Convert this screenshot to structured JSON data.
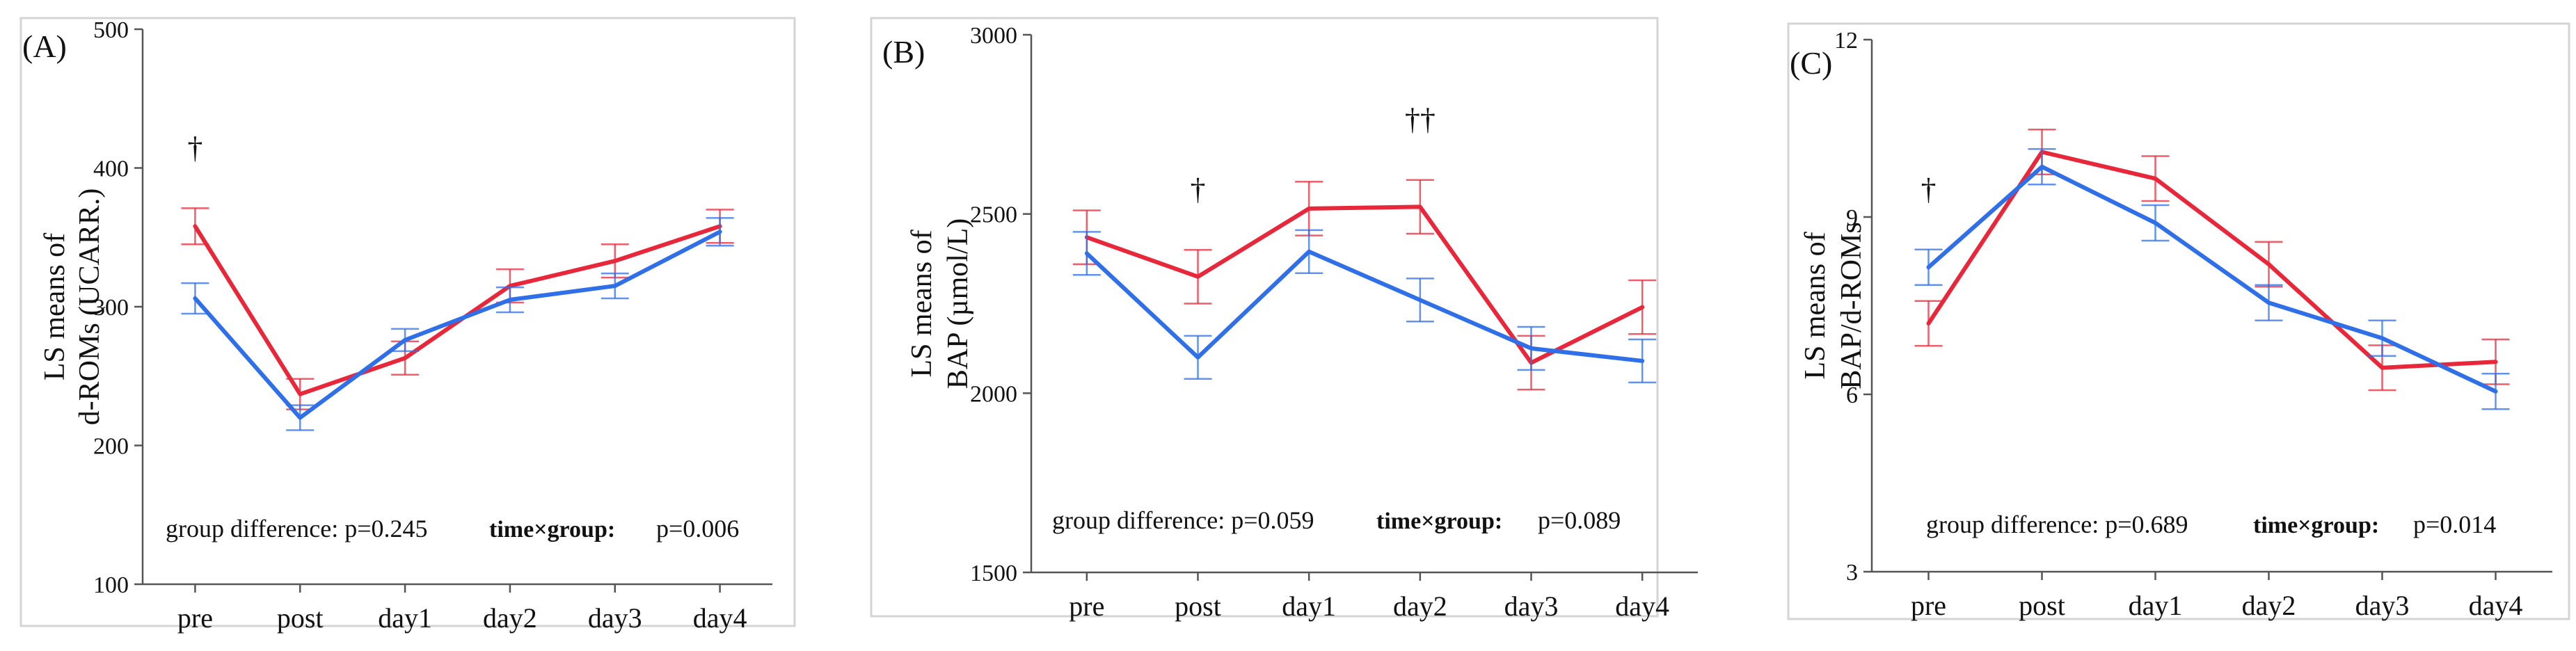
{
  "colors": {
    "group_red": "#e8283a",
    "group_blue": "#2f6fe8",
    "axis": "#555555",
    "panel_border": "#d4d4d4"
  },
  "chart_data": [
    {
      "panel_label": "(A)",
      "type": "line",
      "ylabel_line1": "LS means of",
      "ylabel_line2": "d-ROMs (UCARR.)",
      "categories": [
        "pre",
        "post",
        "day1",
        "day2",
        "day3",
        "day4"
      ],
      "ylim": [
        100,
        500
      ],
      "yticks": [
        100,
        200,
        300,
        400,
        500
      ],
      "series": [
        {
          "name": "red group",
          "color": "#e8283a",
          "values": [
            358,
            237,
            263,
            315,
            333,
            358
          ],
          "errors": [
            13,
            11,
            12,
            12,
            12,
            12
          ]
        },
        {
          "name": "blue group",
          "color": "#2f6fe8",
          "values": [
            306,
            220,
            276,
            305,
            315,
            354
          ],
          "errors": [
            11,
            9,
            8,
            9,
            9,
            10
          ]
        }
      ],
      "significance": [
        {
          "category": "pre",
          "mark": "†"
        }
      ],
      "stats_group_label": "group difference: p=0.245",
      "stats_interaction_label": "time×group:",
      "stats_interaction_p": "p=0.006"
    },
    {
      "panel_label": "(B)",
      "type": "line",
      "ylabel_line1": "LS means of",
      "ylabel_line2": "BAP (µmol/L)",
      "categories": [
        "pre",
        "post",
        "day1",
        "day2",
        "day3",
        "day4"
      ],
      "ylim": [
        1500,
        3000
      ],
      "yticks": [
        1500,
        2000,
        2500,
        3000
      ],
      "series": [
        {
          "name": "red group",
          "color": "#e8283a",
          "values": [
            2435,
            2325,
            2515,
            2520,
            2085,
            2240
          ],
          "errors": [
            75,
            75,
            75,
            75,
            75,
            75
          ]
        },
        {
          "name": "blue group",
          "color": "#2f6fe8",
          "values": [
            2390,
            2100,
            2395,
            2260,
            2125,
            2090
          ],
          "errors": [
            60,
            60,
            60,
            60,
            60,
            60
          ]
        }
      ],
      "significance": [
        {
          "category": "post",
          "mark": "†"
        },
        {
          "category": "day2",
          "mark": "††"
        }
      ],
      "stats_group_label": "group difference: p=0.059",
      "stats_interaction_label": "time×group:",
      "stats_interaction_p": "p=0.089"
    },
    {
      "panel_label": "(C)",
      "type": "line",
      "ylabel_line1": "LS means of",
      "ylabel_line2": "BAP/d-ROMs",
      "categories": [
        "pre",
        "post",
        "day1",
        "day2",
        "day3",
        "day4"
      ],
      "ylim": [
        3,
        12
      ],
      "yticks": [
        3,
        6,
        9,
        12
      ],
      "series": [
        {
          "name": "red group",
          "color": "#e8283a",
          "values": [
            7.2,
            10.1,
            9.65,
            8.2,
            6.45,
            6.55
          ],
          "errors": [
            0.38,
            0.38,
            0.38,
            0.38,
            0.38,
            0.38
          ]
        },
        {
          "name": "blue group",
          "color": "#2f6fe8",
          "values": [
            8.15,
            9.85,
            8.9,
            7.55,
            6.95,
            6.05
          ],
          "errors": [
            0.3,
            0.3,
            0.3,
            0.3,
            0.3,
            0.3
          ]
        }
      ],
      "significance": [
        {
          "category": "pre",
          "mark": "†"
        }
      ],
      "stats_group_label": "group difference: p=0.689",
      "stats_interaction_label": "time×group:",
      "stats_interaction_p": "p=0.014"
    }
  ]
}
